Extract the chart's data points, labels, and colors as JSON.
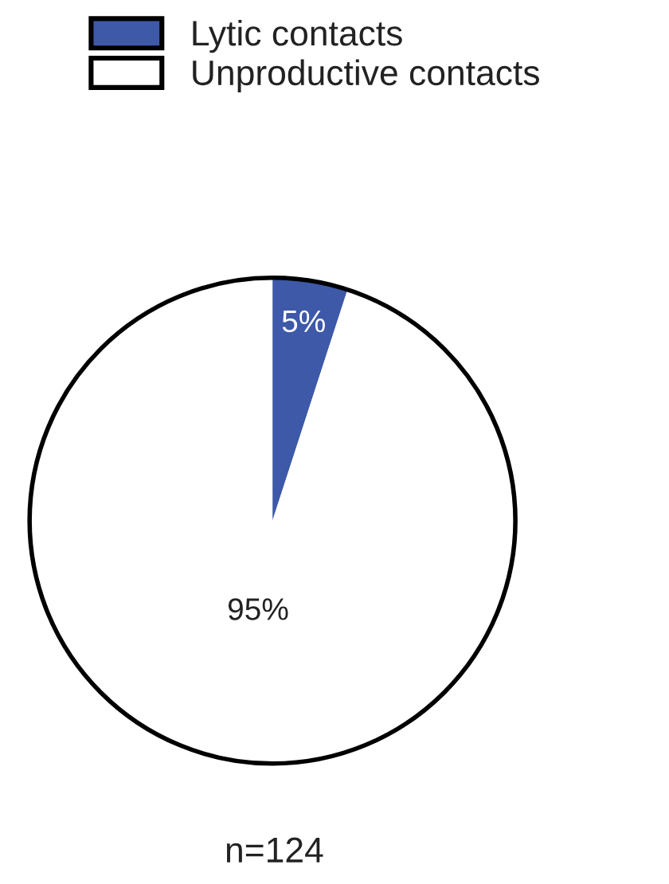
{
  "chart_data": {
    "type": "pie",
    "categories": [
      "Lytic contacts",
      "Unproductive contacts"
    ],
    "values": [
      5,
      95
    ],
    "colors": [
      "#3d59a8",
      "#ffffff"
    ],
    "value_labels": [
      "5%",
      "95%"
    ],
    "legend": "top",
    "annotations": [
      "n=124"
    ]
  }
}
